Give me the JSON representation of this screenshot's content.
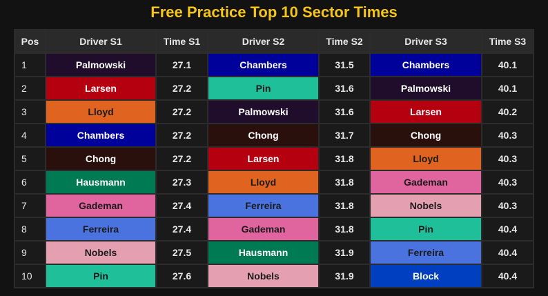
{
  "title": "Free Practice Top 10 Sector Times",
  "headers": [
    "Pos",
    "Driver S1",
    "Time S1",
    "Driver S2",
    "Time S2",
    "Driver S3",
    "Time S3"
  ],
  "driver_colors": {
    "Palmowski": {
      "bg": "#1f0d2b",
      "fg": "#ffffff"
    },
    "Larsen": {
      "bg": "#b5000f",
      "fg": "#ffffff"
    },
    "Lloyd": {
      "bg": "#e06420",
      "fg": "#1a1a1a"
    },
    "Chambers": {
      "bg": "#00009a",
      "fg": "#ffffff"
    },
    "Chong": {
      "bg": "#2a100c",
      "fg": "#ffffff"
    },
    "Hausmann": {
      "bg": "#007a52",
      "fg": "#ffffff"
    },
    "Gademan": {
      "bg": "#e0649e",
      "fg": "#1a1a1a"
    },
    "Ferreira": {
      "bg": "#4a73e0",
      "fg": "#1a1a1a"
    },
    "Nobels": {
      "bg": "#e4a0b0",
      "fg": "#1a1a1a"
    },
    "Pin": {
      "bg": "#1fbf9a",
      "fg": "#1a1a1a"
    },
    "Block": {
      "bg": "#0040c0",
      "fg": "#ffffff"
    }
  },
  "rows": [
    {
      "pos": "1",
      "s1_driver": "Palmowski",
      "s1_time": "27.1",
      "s2_driver": "Chambers",
      "s2_time": "31.5",
      "s3_driver": "Chambers",
      "s3_time": "40.1"
    },
    {
      "pos": "2",
      "s1_driver": "Larsen",
      "s1_time": "27.2",
      "s2_driver": "Pin",
      "s2_time": "31.6",
      "s3_driver": "Palmowski",
      "s3_time": "40.1"
    },
    {
      "pos": "3",
      "s1_driver": "Lloyd",
      "s1_time": "27.2",
      "s2_driver": "Palmowski",
      "s2_time": "31.6",
      "s3_driver": "Larsen",
      "s3_time": "40.2"
    },
    {
      "pos": "4",
      "s1_driver": "Chambers",
      "s1_time": "27.2",
      "s2_driver": "Chong",
      "s2_time": "31.7",
      "s3_driver": "Chong",
      "s3_time": "40.3"
    },
    {
      "pos": "5",
      "s1_driver": "Chong",
      "s1_time": "27.2",
      "s2_driver": "Larsen",
      "s2_time": "31.8",
      "s3_driver": "Lloyd",
      "s3_time": "40.3"
    },
    {
      "pos": "6",
      "s1_driver": "Hausmann",
      "s1_time": "27.3",
      "s2_driver": "Lloyd",
      "s2_time": "31.8",
      "s3_driver": "Gademan",
      "s3_time": "40.3"
    },
    {
      "pos": "7",
      "s1_driver": "Gademan",
      "s1_time": "27.4",
      "s2_driver": "Ferreira",
      "s2_time": "31.8",
      "s3_driver": "Nobels",
      "s3_time": "40.3"
    },
    {
      "pos": "8",
      "s1_driver": "Ferreira",
      "s1_time": "27.4",
      "s2_driver": "Gademan",
      "s2_time": "31.8",
      "s3_driver": "Pin",
      "s3_time": "40.4"
    },
    {
      "pos": "9",
      "s1_driver": "Nobels",
      "s1_time": "27.5",
      "s2_driver": "Hausmann",
      "s2_time": "31.9",
      "s3_driver": "Ferreira",
      "s3_time": "40.4"
    },
    {
      "pos": "10",
      "s1_driver": "Pin",
      "s1_time": "27.6",
      "s2_driver": "Nobels",
      "s2_time": "31.9",
      "s3_driver": "Block",
      "s3_time": "40.4"
    }
  ]
}
